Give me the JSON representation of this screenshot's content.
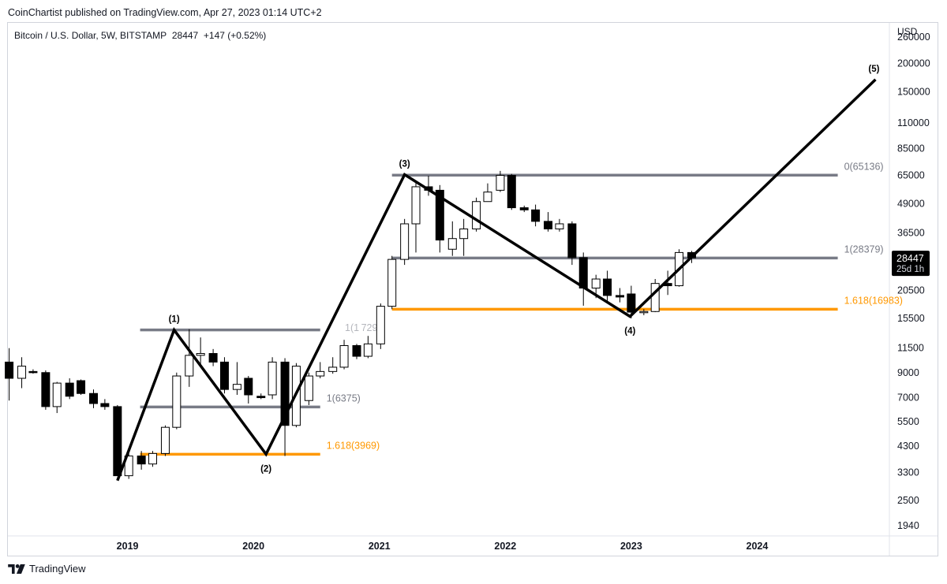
{
  "header": {
    "publisher": "CoinChartist published on TradingView.com, Apr 27, 2023 01:14 UTC+2"
  },
  "symbol": {
    "title": "Bitcoin / U.S. Dollar, 5W, BITSTAMP",
    "last": "28447",
    "change": "+147 (+0.52%)"
  },
  "footer": {
    "brand": "TradingView",
    "logo_icon": "tradingview-logo-icon"
  },
  "colors": {
    "bull": "#ffffff",
    "bear": "#000000",
    "fib_gray": "#787b86",
    "fib_orange": "#ff9800",
    "wave": "#000000"
  },
  "chart_data": {
    "type": "candlestick",
    "title": "Bitcoin / U.S. Dollar, 5W, BITSTAMP",
    "y_axis": {
      "unit": "USD",
      "scale": "log",
      "ticks": [
        1940,
        2500,
        3300,
        4300,
        5500,
        7000,
        9000,
        11500,
        15500,
        20500,
        28447,
        36500,
        49000,
        65000,
        85000,
        110000,
        150000,
        200000,
        260000
      ],
      "range": [
        1750,
        300000
      ]
    },
    "x_axis": {
      "ticks": [
        "2019",
        "2020",
        "2021",
        "2022",
        "2023",
        "2024"
      ],
      "range": [
        2018.05,
        2025.05
      ]
    },
    "price_label": {
      "value": "28447",
      "countdown": "25d 1h"
    },
    "candles": [
      {
        "t": 2018.06,
        "o": 10000,
        "h": 11500,
        "l": 6800,
        "c": 8500
      },
      {
        "t": 2018.16,
        "o": 8500,
        "h": 10500,
        "l": 7700,
        "c": 9600
      },
      {
        "t": 2018.25,
        "o": 9100,
        "h": 9300,
        "l": 8900,
        "c": 9000
      },
      {
        "t": 2018.35,
        "o": 9000,
        "h": 9200,
        "l": 6200,
        "c": 6400
      },
      {
        "t": 2018.44,
        "o": 6400,
        "h": 8200,
        "l": 6000,
        "c": 8100
      },
      {
        "t": 2018.54,
        "o": 8100,
        "h": 8500,
        "l": 6900,
        "c": 7100
      },
      {
        "t": 2018.63,
        "o": 8300,
        "h": 8400,
        "l": 7200,
        "c": 7300
      },
      {
        "t": 2018.73,
        "o": 7300,
        "h": 7600,
        "l": 6300,
        "c": 6600
      },
      {
        "t": 2018.82,
        "o": 6600,
        "h": 6900,
        "l": 6200,
        "c": 6400
      },
      {
        "t": 2018.92,
        "o": 6400,
        "h": 6500,
        "l": 3300,
        "c": 3200
      },
      {
        "t": 2019.01,
        "o": 3200,
        "h": 4000,
        "l": 3100,
        "c": 3900
      },
      {
        "t": 2019.11,
        "o": 3900,
        "h": 4100,
        "l": 3400,
        "c": 3600
      },
      {
        "t": 2019.2,
        "o": 3600,
        "h": 4100,
        "l": 3500,
        "c": 4000
      },
      {
        "t": 2019.3,
        "o": 4000,
        "h": 5300,
        "l": 3900,
        "c": 5200
      },
      {
        "t": 2019.39,
        "o": 5200,
        "h": 9000,
        "l": 5100,
        "c": 8700
      },
      {
        "t": 2019.49,
        "o": 8700,
        "h": 13900,
        "l": 7800,
        "c": 10700
      },
      {
        "t": 2019.58,
        "o": 10700,
        "h": 12800,
        "l": 9500,
        "c": 10900
      },
      {
        "t": 2019.68,
        "o": 10900,
        "h": 11400,
        "l": 9600,
        "c": 10000
      },
      {
        "t": 2019.77,
        "o": 10000,
        "h": 10500,
        "l": 7300,
        "c": 7600
      },
      {
        "t": 2019.87,
        "o": 7600,
        "h": 10000,
        "l": 7200,
        "c": 8000
      },
      {
        "t": 2019.96,
        "o": 8500,
        "h": 8700,
        "l": 6600,
        "c": 7200
      },
      {
        "t": 2020.06,
        "o": 7100,
        "h": 7300,
        "l": 6900,
        "c": 7000
      },
      {
        "t": 2020.15,
        "o": 7200,
        "h": 10500,
        "l": 6900,
        "c": 10000
      },
      {
        "t": 2020.25,
        "o": 10000,
        "h": 10400,
        "l": 3900,
        "c": 5300
      },
      {
        "t": 2020.34,
        "o": 5300,
        "h": 9900,
        "l": 5200,
        "c": 9600
      },
      {
        "t": 2020.44,
        "o": 6800,
        "h": 9000,
        "l": 6500,
        "c": 8700
      },
      {
        "t": 2020.53,
        "o": 8700,
        "h": 10000,
        "l": 8500,
        "c": 9100
      },
      {
        "t": 2020.63,
        "o": 9100,
        "h": 10500,
        "l": 8900,
        "c": 9500
      },
      {
        "t": 2020.72,
        "o": 9500,
        "h": 12500,
        "l": 9300,
        "c": 11800
      },
      {
        "t": 2020.82,
        "o": 11800,
        "h": 12000,
        "l": 10300,
        "c": 10600
      },
      {
        "t": 2020.91,
        "o": 10600,
        "h": 13000,
        "l": 10400,
        "c": 12000
      },
      {
        "t": 2021.01,
        "o": 12000,
        "h": 18000,
        "l": 11400,
        "c": 17500
      },
      {
        "t": 2021.1,
        "o": 17500,
        "h": 29000,
        "l": 17000,
        "c": 28000
      },
      {
        "t": 2021.2,
        "o": 28000,
        "h": 42000,
        "l": 26500,
        "c": 40000
      },
      {
        "t": 2021.29,
        "o": 40000,
        "h": 61000,
        "l": 30000,
        "c": 58000
      },
      {
        "t": 2021.39,
        "o": 58000,
        "h": 64800,
        "l": 53000,
        "c": 56000
      },
      {
        "t": 2021.48,
        "o": 56000,
        "h": 59000,
        "l": 30000,
        "c": 34000
      },
      {
        "t": 2021.58,
        "o": 31000,
        "h": 41000,
        "l": 29000,
        "c": 34500
      },
      {
        "t": 2021.67,
        "o": 34500,
        "h": 42000,
        "l": 29000,
        "c": 38000
      },
      {
        "t": 2021.77,
        "o": 38000,
        "h": 52000,
        "l": 37000,
        "c": 50000
      },
      {
        "t": 2021.86,
        "o": 50000,
        "h": 60000,
        "l": 50000,
        "c": 55000
      },
      {
        "t": 2021.96,
        "o": 56000,
        "h": 68000,
        "l": 55000,
        "c": 65000
      },
      {
        "t": 2022.05,
        "o": 65000,
        "h": 66000,
        "l": 46000,
        "c": 47000
      },
      {
        "t": 2022.15,
        "o": 47000,
        "h": 48000,
        "l": 45000,
        "c": 46000
      },
      {
        "t": 2022.24,
        "o": 46000,
        "h": 48500,
        "l": 39000,
        "c": 41000
      },
      {
        "t": 2022.34,
        "o": 41000,
        "h": 45000,
        "l": 37000,
        "c": 38000
      },
      {
        "t": 2022.43,
        "o": 38000,
        "h": 42000,
        "l": 37000,
        "c": 40000
      },
      {
        "t": 2022.53,
        "o": 40000,
        "h": 41000,
        "l": 26500,
        "c": 28500
      },
      {
        "t": 2022.62,
        "o": 28500,
        "h": 30000,
        "l": 17600,
        "c": 21000
      },
      {
        "t": 2022.72,
        "o": 21000,
        "h": 24000,
        "l": 19000,
        "c": 23000
      },
      {
        "t": 2022.81,
        "o": 23000,
        "h": 25000,
        "l": 18500,
        "c": 19500
      },
      {
        "t": 2022.91,
        "o": 19500,
        "h": 21000,
        "l": 18200,
        "c": 19200
      },
      {
        "t": 2023.0,
        "o": 19800,
        "h": 21500,
        "l": 15500,
        "c": 16500
      },
      {
        "t": 2023.1,
        "o": 16500,
        "h": 17000,
        "l": 16000,
        "c": 16600
      },
      {
        "t": 2023.19,
        "o": 16600,
        "h": 23000,
        "l": 16500,
        "c": 22000
      },
      {
        "t": 2023.29,
        "o": 22000,
        "h": 25000,
        "l": 19600,
        "c": 21500
      },
      {
        "t": 2023.38,
        "o": 21500,
        "h": 31000,
        "l": 21300,
        "c": 30000
      },
      {
        "t": 2023.48,
        "o": 30000,
        "h": 30500,
        "l": 27000,
        "c": 28447
      }
    ],
    "levels": [
      {
        "label": "",
        "value": 13800,
        "x0": 2019.1,
        "x1": 2020.53,
        "color": "gray"
      },
      {
        "label": "1(6375)",
        "value": 6375,
        "x0": 2019.1,
        "x1": 2020.53,
        "color": "gray"
      },
      {
        "label": "1.618(3969)",
        "value": 3969,
        "x0": 2019.1,
        "x1": 2020.53,
        "color": "orange"
      },
      {
        "label": "0(65136)",
        "value": 65136,
        "x0": 2021.1,
        "x1": 2024.64,
        "color": "gray"
      },
      {
        "label": "1(28379)",
        "value": 28379,
        "x0": 2021.1,
        "x1": 2024.64,
        "color": "gray"
      },
      {
        "label": "1.618(16983)",
        "value": 16983,
        "x0": 2021.1,
        "x1": 2024.64,
        "color": "orange"
      }
    ],
    "partial_level_text": "1(1 729)",
    "waves": [
      {
        "label": "",
        "t": 2018.92,
        "price": 3050
      },
      {
        "label": "(1)",
        "t": 2019.37,
        "price": 13800
      },
      {
        "label": "(2)",
        "t": 2020.1,
        "price": 3970
      },
      {
        "label": "(3)",
        "t": 2021.2,
        "price": 65500
      },
      {
        "label": "(4)",
        "t": 2022.99,
        "price": 15800
      },
      {
        "label": "(5)",
        "t": 2024.94,
        "price": 170000
      }
    ]
  }
}
